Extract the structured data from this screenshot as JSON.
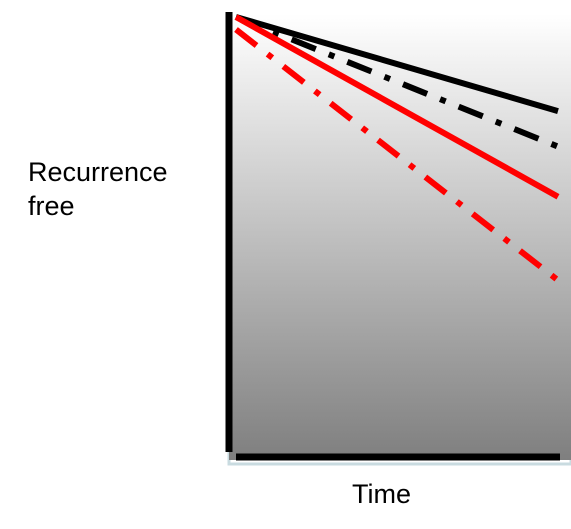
{
  "chart_data": {
    "type": "line",
    "title": "",
    "xlabel": "Time",
    "ylabel": "Recurrence\nfree",
    "grid": false,
    "legend": "none",
    "xlim": [
      0,
      1
    ],
    "ylim": [
      0,
      1
    ],
    "series": [
      {
        "style": "solid",
        "color": "#000000",
        "x": [
          0,
          1
        ],
        "y": [
          1.0,
          0.775
        ]
      },
      {
        "style": "dashdot",
        "color": "#000000",
        "x": [
          0,
          1
        ],
        "y": [
          1.0,
          0.69
        ]
      },
      {
        "style": "solid",
        "color": "#ff0000",
        "x": [
          0,
          1
        ],
        "y": [
          1.0,
          0.57
        ]
      },
      {
        "style": "dashdot",
        "color": "#ff0000",
        "x": [
          0,
          1
        ],
        "y": [
          0.97,
          0.37
        ]
      }
    ]
  },
  "colors": {
    "gradient_top": "#ffffff",
    "gradient_bottom": "#7f7f7f",
    "axis": "#000000",
    "frame": "#c9dbe0"
  }
}
